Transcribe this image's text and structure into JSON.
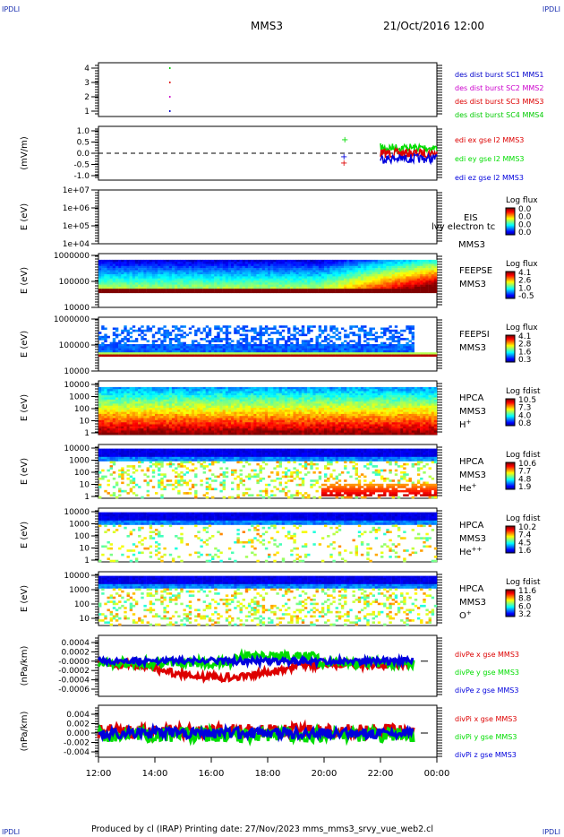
{
  "corners": {
    "tl": "IPDLI",
    "tr": "IPDLI",
    "bl": "IPDLI",
    "br": "IPDLI"
  },
  "header": {
    "spacecraft": "MMS3",
    "datetime": "21/Oct/2016 12:00"
  },
  "footer": {
    "text": "Produced by cl (IRAP)   Printing date: 27/Nov/2023   mms_mms3_srvy_vue_web2.cl"
  },
  "colors": {
    "mms1": "#0000cc",
    "mms2": "#cc00cc",
    "mms3": "#dd0000",
    "mms4": "#00cc00",
    "x": "#dd0000",
    "y": "#00dd00",
    "z": "#0000dd"
  },
  "chart_data": [
    {
      "type": "scatter",
      "panel": "des_dist_burst",
      "yticks": [
        "1",
        "2",
        "3",
        "4"
      ],
      "series": [
        {
          "name": "des dist burst SC1 MMS1"
        },
        {
          "name": "des dist burst SC2 MMS2"
        },
        {
          "name": "des dist burst SC3 MMS3"
        },
        {
          "name": "des dist burst SC4 MMS4"
        }
      ],
      "x": [
        "12:00",
        "14:00",
        "16:00",
        "18:00",
        "20:00",
        "22:00",
        "00:00"
      ]
    },
    {
      "type": "line",
      "panel": "edi",
      "ylabel": "(mV/m)",
      "yticks": [
        "1.0",
        "0.5",
        "0.0",
        "-0.5",
        "-1.0"
      ],
      "series": [
        {
          "name": "edi ex gse l2 MMS3"
        },
        {
          "name": "edi ey gse l2 MMS3"
        },
        {
          "name": "edi ez gse l2 MMS3"
        }
      ]
    },
    {
      "type": "heatmap",
      "panel": "EIS",
      "ylabel": "E (eV)",
      "yticks": [
        "1e+07",
        "1e+06",
        "1e+05",
        "1e+04"
      ],
      "labels": [
        "EIS",
        "MMS3"
      ],
      "overlay": "lvy electron tc",
      "colorbar": {
        "title": "Log flux",
        "ticks": [
          "0.0",
          "0.0",
          "0.0",
          "0.0"
        ]
      }
    },
    {
      "type": "heatmap",
      "panel": "FEEPSE",
      "ylabel": "E (eV)",
      "yticks": [
        "1000000",
        "100000",
        "10000"
      ],
      "labels": [
        "FEEPSE",
        "MMS3"
      ],
      "colorbar": {
        "title": "Log flux",
        "ticks": [
          "4.1",
          "2.6",
          "1.0",
          "-0.5"
        ]
      }
    },
    {
      "type": "heatmap",
      "panel": "FEEPSI",
      "ylabel": "E (eV)",
      "yticks": [
        "1000000",
        "100000",
        "10000"
      ],
      "labels": [
        "FEEPSI",
        "MMS3"
      ],
      "colorbar": {
        "title": "Log flux",
        "ticks": [
          "4.1",
          "2.8",
          "1.6",
          "0.3"
        ]
      }
    },
    {
      "type": "heatmap",
      "panel": "HPCA H+",
      "ylabel": "E (eV)",
      "yticks": [
        "10000",
        "1000",
        "100",
        "10",
        "1"
      ],
      "labels": [
        "HPCA",
        "MMS3",
        "H+"
      ],
      "colorbar": {
        "title": "Log fdist",
        "ticks": [
          "10.5",
          "7.3",
          "4.0",
          "0.8"
        ]
      }
    },
    {
      "type": "heatmap",
      "panel": "HPCA He+",
      "ylabel": "E (eV)",
      "yticks": [
        "10000",
        "1000",
        "100",
        "10",
        "1"
      ],
      "labels": [
        "HPCA",
        "MMS3",
        "He+"
      ],
      "colorbar": {
        "title": "Log fdist",
        "ticks": [
          "10.6",
          "7.7",
          "4.8",
          "1.9"
        ]
      }
    },
    {
      "type": "heatmap",
      "panel": "HPCA He++",
      "ylabel": "E (eV)",
      "yticks": [
        "10000",
        "1000",
        "100",
        "10",
        "1"
      ],
      "labels": [
        "HPCA",
        "MMS3",
        "He++"
      ],
      "colorbar": {
        "title": "Log fdist",
        "ticks": [
          "10.2",
          "7.4",
          "4.5",
          "1.6"
        ]
      }
    },
    {
      "type": "heatmap",
      "panel": "HPCA O+",
      "ylabel": "E (eV)",
      "yticks": [
        "10000",
        "1000",
        "100",
        "10"
      ],
      "labels": [
        "HPCA",
        "MMS3",
        "O+"
      ],
      "colorbar": {
        "title": "Log fdist",
        "ticks": [
          "11.6",
          "8.8",
          "6.0",
          "3.2"
        ]
      }
    },
    {
      "type": "line",
      "panel": "divPe",
      "ylabel": "(nPa/km)",
      "yticks": [
        "0.0004",
        "0.0002",
        "-0.0000",
        "-0.0002",
        "-0.0004",
        "-0.0006"
      ],
      "series": [
        {
          "name": "divPe x gse MMS3"
        },
        {
          "name": "divPe y gse MMS3"
        },
        {
          "name": "divPe z gse MMS3"
        }
      ]
    },
    {
      "type": "line",
      "panel": "divPi",
      "ylabel": "(nPa/km)",
      "yticks": [
        "0.004",
        "0.002",
        "0.000",
        "-0.002",
        "-0.004"
      ],
      "series": [
        {
          "name": "divPi x gse MMS3"
        },
        {
          "name": "divPi y gse MMS3"
        },
        {
          "name": "divPi z gse MMS3"
        }
      ],
      "x": [
        "12:00",
        "14:00",
        "16:00",
        "18:00",
        "20:00",
        "22:00",
        "00:00"
      ]
    }
  ]
}
